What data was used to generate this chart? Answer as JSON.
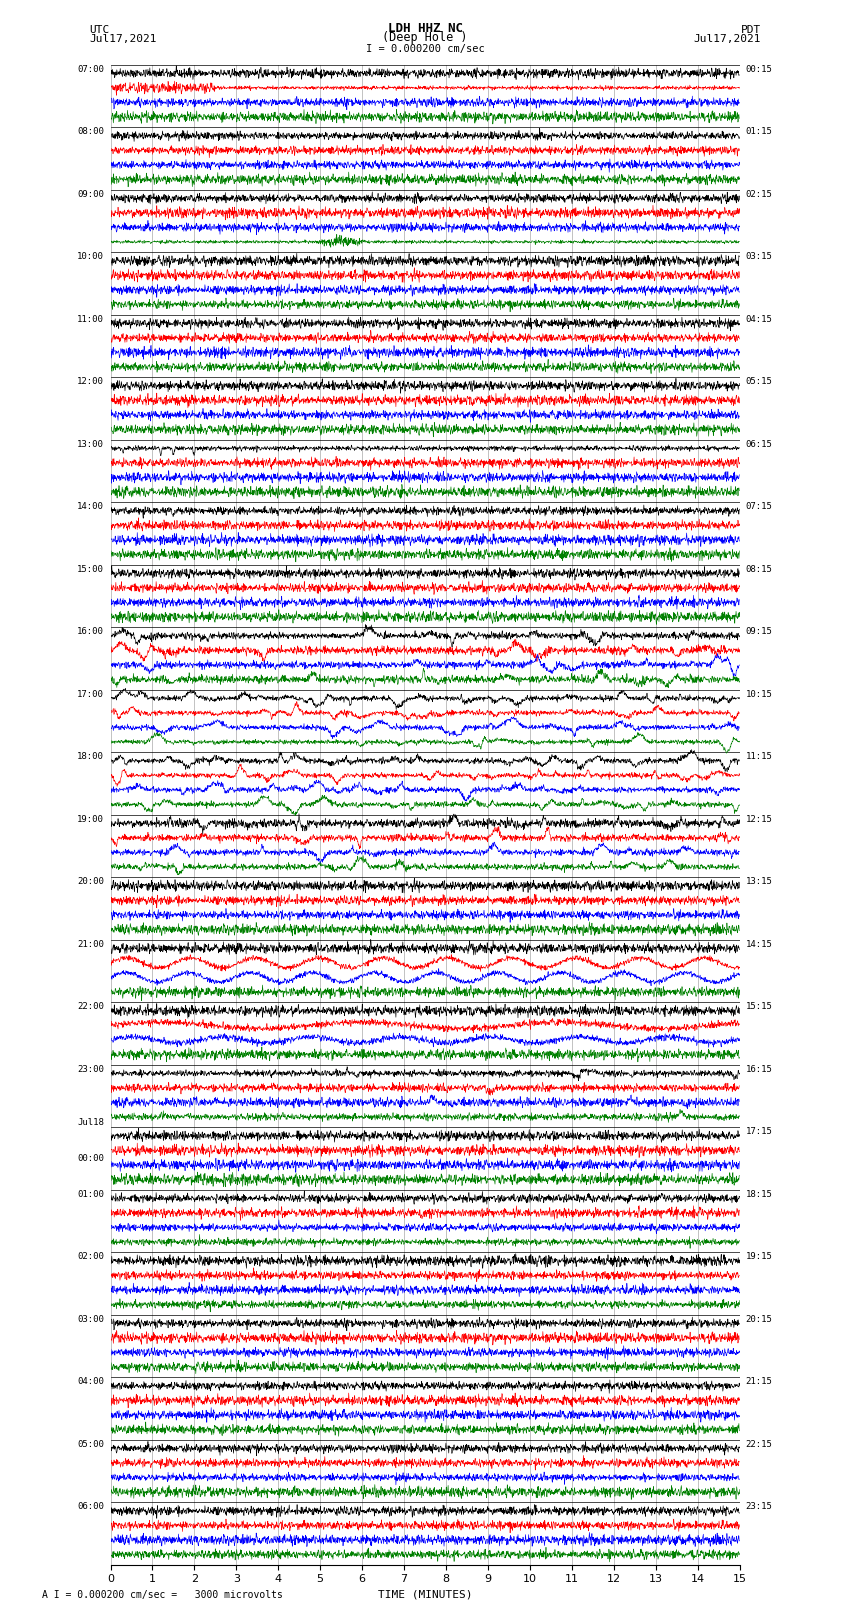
{
  "title_line1": "LDH HHZ NC",
  "title_line2": "(Deep Hole )",
  "scale_text": "I = 0.000200 cm/sec",
  "footer_text": "A I = 0.000200 cm/sec =   3000 microvolts",
  "utc_label": "UTC",
  "utc_date": "Jul17,2021",
  "pdt_label": "PDT",
  "pdt_date": "Jul17,2021",
  "xlabel": "TIME (MINUTES)",
  "xmin": 0,
  "xmax": 15,
  "xticks": [
    0,
    1,
    2,
    3,
    4,
    5,
    6,
    7,
    8,
    9,
    10,
    11,
    12,
    13,
    14,
    15
  ],
  "bg_color": "#ffffff",
  "grid_color": "#aaaaaa",
  "colors": [
    "black",
    "red",
    "blue",
    "green"
  ],
  "n_hour_rows": 24,
  "traces_per_hour": 4,
  "row_labels_left": [
    "07:00",
    "08:00",
    "09:00",
    "10:00",
    "11:00",
    "12:00",
    "13:00",
    "14:00",
    "15:00",
    "16:00",
    "17:00",
    "18:00",
    "19:00",
    "20:00",
    "21:00",
    "22:00",
    "23:00",
    "Jul18\n00:00",
    "01:00",
    "02:00",
    "03:00",
    "04:00",
    "05:00",
    "06:00"
  ],
  "row_labels_right": [
    "00:15",
    "01:15",
    "02:15",
    "03:15",
    "04:15",
    "05:15",
    "06:15",
    "07:15",
    "08:15",
    "09:15",
    "10:15",
    "11:15",
    "12:15",
    "13:15",
    "14:15",
    "15:15",
    "16:15",
    "17:15",
    "18:15",
    "19:15",
    "20:15",
    "21:15",
    "22:15",
    "23:15"
  ],
  "jul18_row": 17,
  "seed": 42,
  "n_points": 2000
}
